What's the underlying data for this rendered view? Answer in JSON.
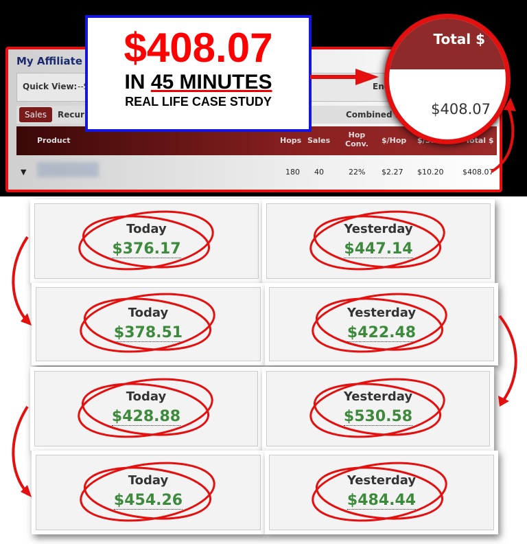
{
  "headline": {
    "amount": "$408.07",
    "line2_prefix": "IN ",
    "line2_emph": "45 MINUTES",
    "line3": "REAL LIFE CASE STUDY"
  },
  "report": {
    "title": "My Affiliate S",
    "quick_view_label": "Quick View:",
    "quick_view_value": "--S",
    "end_label": "End",
    "tabs": [
      "Sales",
      "Recurr"
    ],
    "combined_label": "Combined E",
    "columns": [
      "Product",
      "Hops",
      "Sales",
      "Hop Conv.",
      "$/Hop",
      "$/Sale",
      "Total $"
    ],
    "row": {
      "hops": "180",
      "sales": "40",
      "hop_conv": "22%",
      "per_hop": "$2.27",
      "per_sale": "$10.20",
      "total": "$408.07"
    }
  },
  "magnifier": {
    "header": "Total $",
    "value": "$408.07"
  },
  "cards": [
    {
      "label": "Today",
      "value": "$376.17"
    },
    {
      "label": "Yesterday",
      "value": "$447.14"
    },
    {
      "label": "Today",
      "value": "$378.51"
    },
    {
      "label": "Yesterday",
      "value": "$422.48"
    },
    {
      "label": "Today",
      "value": "$428.88"
    },
    {
      "label": "Yesterday",
      "value": "$530.58"
    },
    {
      "label": "Today",
      "value": "$454.26"
    },
    {
      "label": "Yesterday",
      "value": "$484.44"
    }
  ],
  "colors": {
    "accent_red": "#e41010",
    "value_green": "#3d8a3d",
    "header_maroon": "#8e2a2a",
    "callout_border": "#1515e0"
  }
}
